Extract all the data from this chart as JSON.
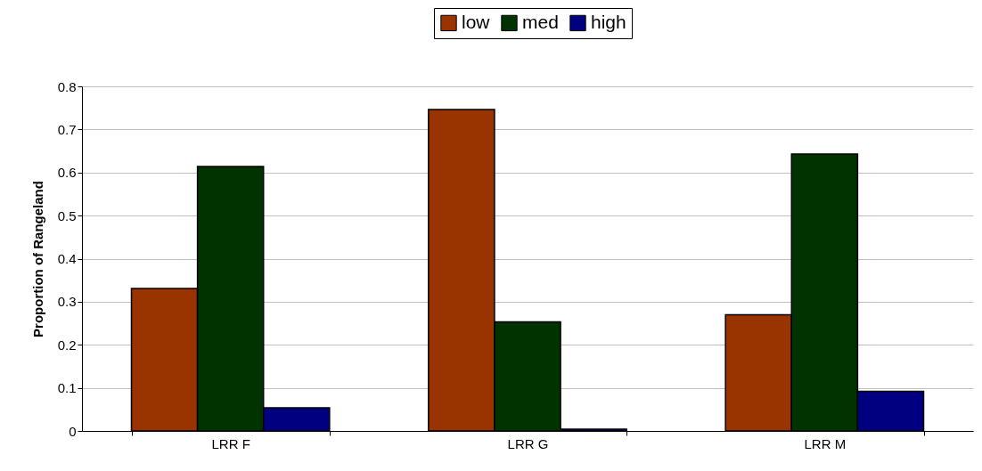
{
  "chart_data": {
    "type": "bar",
    "ylabel": "Proportion of Rangeland",
    "categories": [
      "LRR F",
      "LRR G",
      "LRR M"
    ],
    "series": [
      {
        "name": "low",
        "color": "#993300",
        "values": [
          0.331,
          0.746,
          0.27
        ]
      },
      {
        "name": "med",
        "color": "#003300",
        "values": [
          0.614,
          0.253,
          0.643
        ]
      },
      {
        "name": "high",
        "color": "#000080",
        "values": [
          0.054,
          0.004,
          0.092
        ]
      }
    ],
    "ylim": [
      0,
      0.8
    ],
    "yticks": [
      0,
      0.1,
      0.2,
      0.3,
      0.4,
      0.5,
      0.6,
      0.7,
      0.8
    ],
    "grid": "y",
    "legend": "top"
  }
}
